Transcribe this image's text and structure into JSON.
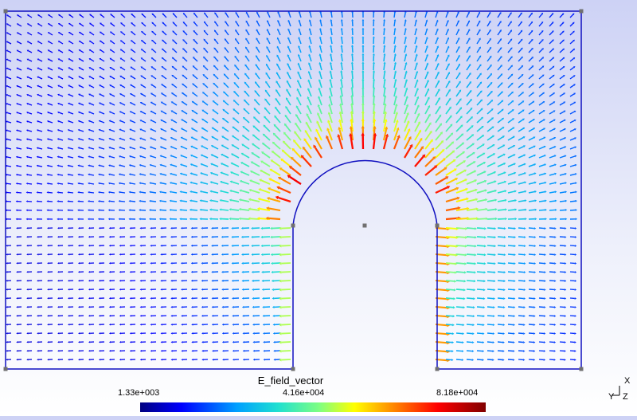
{
  "legend": {
    "title": "E_field_vector",
    "min_label": "1.33e+003",
    "mid_label": "4.16e+004",
    "max_label": "8.18e+004",
    "colormap": [
      "#000080",
      "#0000ff",
      "#00a0ff",
      "#20e0d0",
      "#80ff80",
      "#ffff00",
      "#ff8000",
      "#ff0000",
      "#800000"
    ]
  },
  "axes": {
    "x": "X",
    "y": "Y",
    "z": "Z"
  },
  "colors": {
    "boundary": "#1010c0",
    "vertex": "#707070",
    "background_top": "#cdd2f5",
    "background_bottom": "#ffffff"
  }
}
